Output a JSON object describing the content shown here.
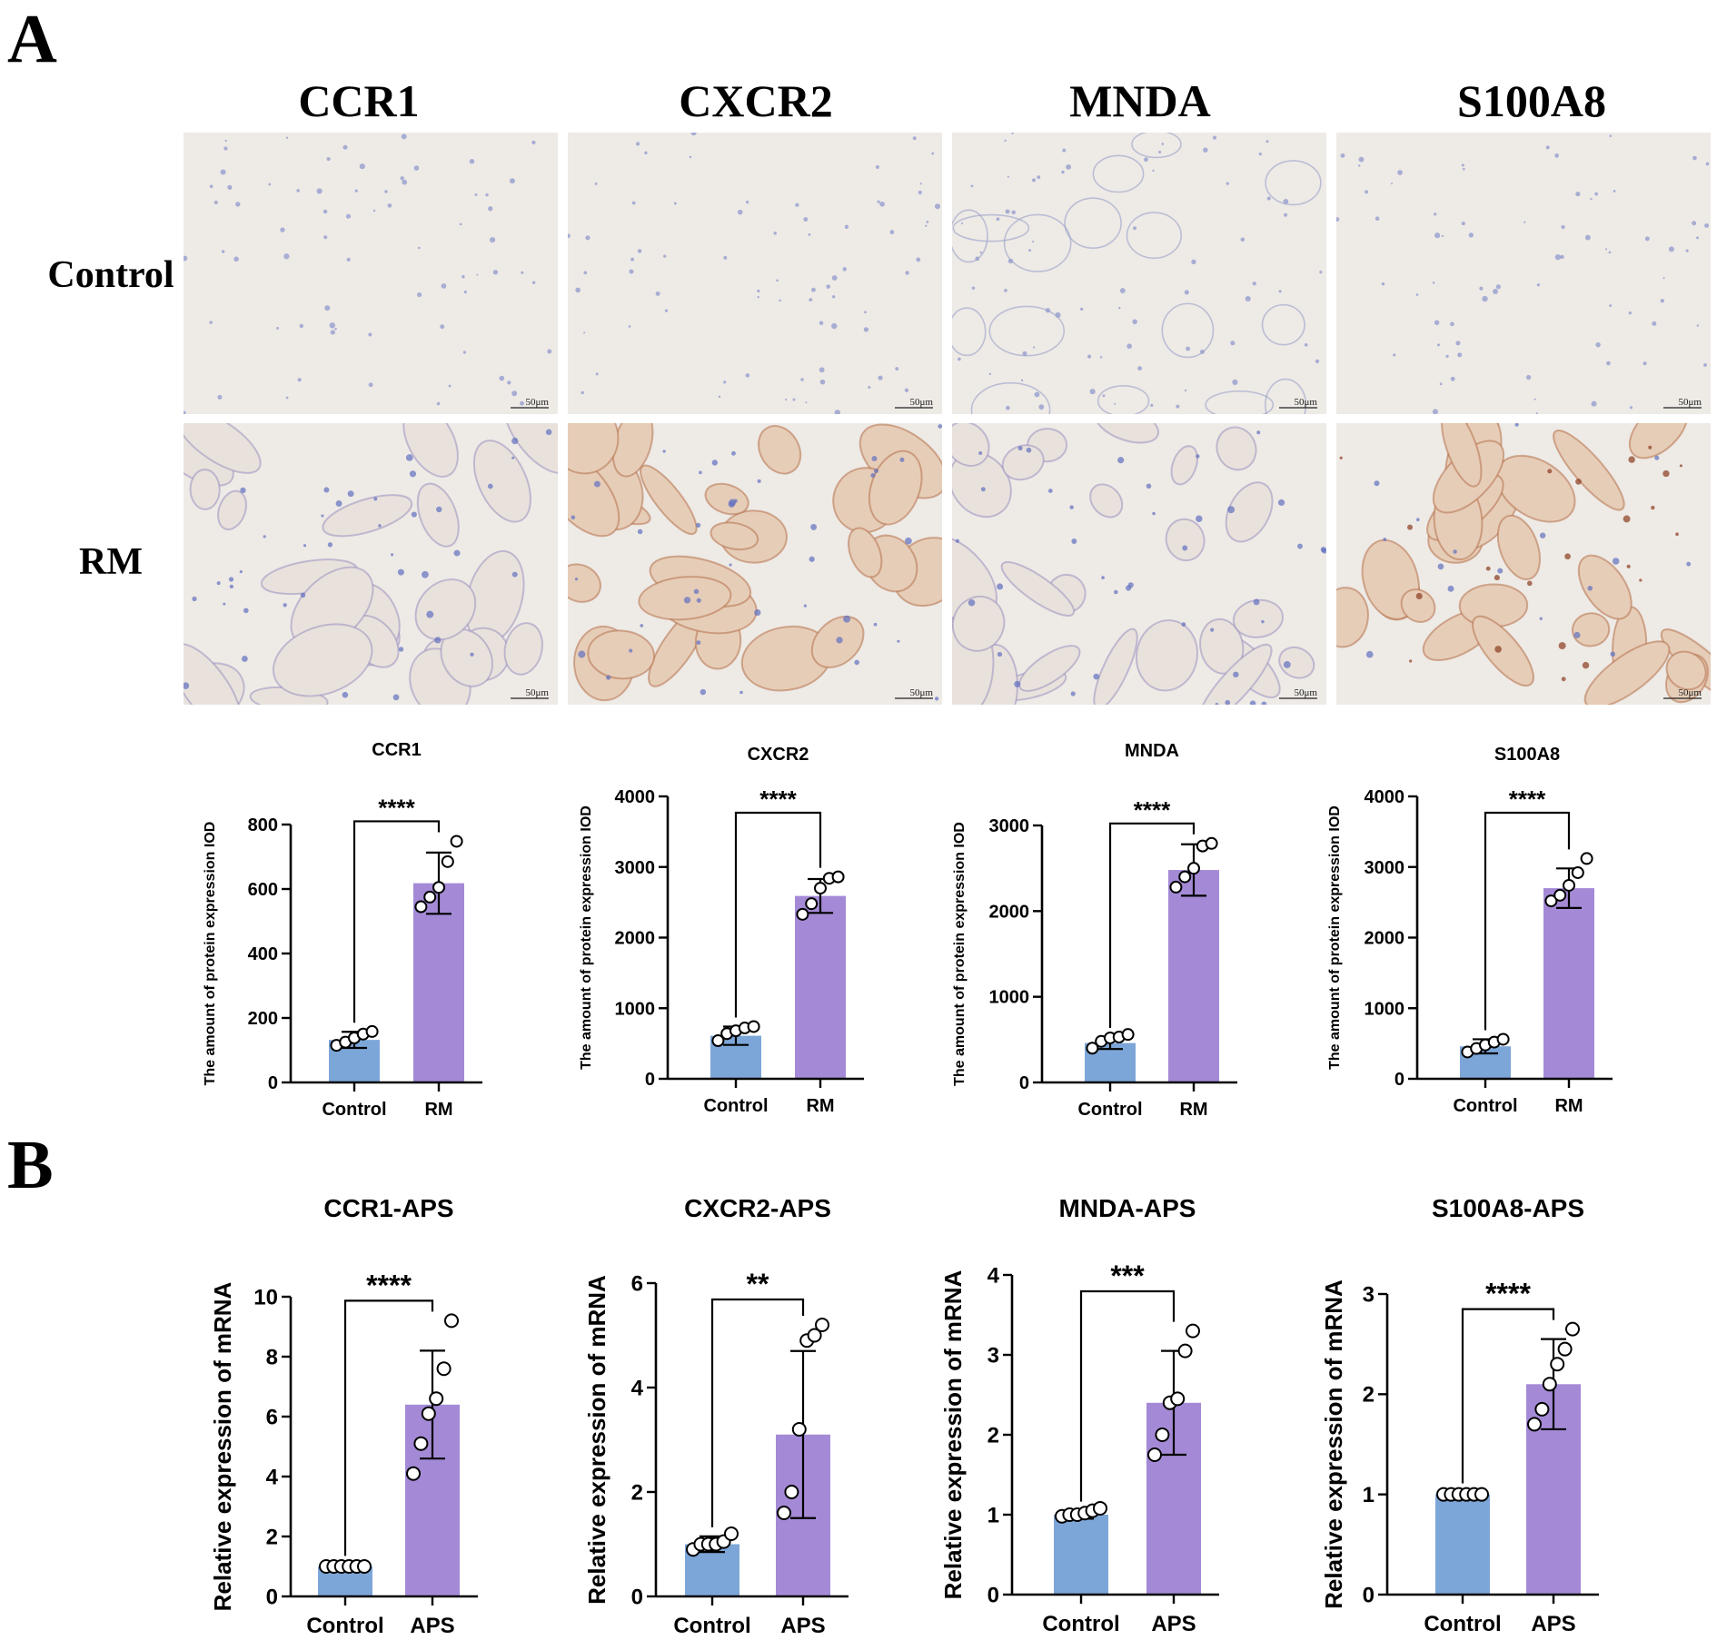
{
  "panel_a": {
    "letter": "A",
    "micrograph": {
      "columns": [
        "CCR1",
        "CXCR2",
        "MNDA",
        "S100A8"
      ],
      "rows": [
        "Control",
        "RM"
      ],
      "scale_bar": "50μm"
    }
  },
  "panel_b": {
    "letter": "B"
  },
  "colors": {
    "control_bar": "#7da6d8",
    "treatment_bar": "#a48ad6",
    "axis": "#000000",
    "tissue_bg": "#eeeae6",
    "stain_brown": "#b5714a",
    "stain_blue": "#5f6fbf"
  },
  "chart_data": [
    {
      "type": "bar",
      "title": "CCR1",
      "xlabel": "",
      "ylabel": "The amount of protein expression IOD",
      "categories": [
        "Control",
        "RM"
      ],
      "values": [
        132,
        618
      ],
      "error": [
        25,
        95
      ],
      "points": [
        [
          115,
          125,
          138,
          150,
          158
        ],
        [
          545,
          575,
          605,
          685,
          748
        ]
      ],
      "ylim": [
        0,
        800
      ],
      "yticks": [
        0,
        200,
        400,
        600,
        800
      ],
      "significance": "****"
    },
    {
      "type": "bar",
      "title": "CXCR2",
      "xlabel": "",
      "ylabel": "The amount of protein expression IOD",
      "categories": [
        "Control",
        "RM"
      ],
      "values": [
        610,
        2590
      ],
      "error": [
        130,
        240
      ],
      "points": [
        [
          540,
          640,
          680,
          720,
          740
        ],
        [
          2330,
          2480,
          2700,
          2840,
          2860
        ]
      ],
      "ylim": [
        0,
        4000
      ],
      "yticks": [
        0,
        1000,
        2000,
        3000,
        4000
      ],
      "significance": "****"
    },
    {
      "type": "bar",
      "title": "MNDA",
      "xlabel": "",
      "ylabel": "The amount of protein expression IOD",
      "categories": [
        "Control",
        "RM"
      ],
      "values": [
        460,
        2480
      ],
      "error": [
        70,
        300
      ],
      "points": [
        [
          400,
          480,
          520,
          530,
          560
        ],
        [
          2280,
          2400,
          2500,
          2760,
          2790
        ]
      ],
      "ylim": [
        0,
        3000
      ],
      "yticks": [
        0,
        1000,
        2000,
        3000
      ],
      "significance": "****"
    },
    {
      "type": "bar",
      "title": "S100A8",
      "xlabel": "",
      "ylabel": "The amount of protein expression IOD",
      "categories": [
        "Control",
        "RM"
      ],
      "values": [
        460,
        2700
      ],
      "error": [
        100,
        280
      ],
      "points": [
        [
          380,
          430,
          480,
          520,
          560
        ],
        [
          2520,
          2600,
          2740,
          2920,
          3120
        ]
      ],
      "ylim": [
        0,
        4000
      ],
      "yticks": [
        0,
        1000,
        2000,
        3000,
        4000
      ],
      "significance": "****"
    },
    {
      "type": "bar",
      "title": "CCR1-APS",
      "xlabel": "",
      "ylabel": "Relative expression of mRNA",
      "categories": [
        "Control",
        "APS"
      ],
      "values": [
        1.0,
        6.4
      ],
      "error": [
        0.05,
        1.8
      ],
      "points": [
        [
          1.0,
          1.0,
          1.0,
          1.0,
          1.0,
          1.0
        ],
        [
          4.1,
          5.1,
          6.1,
          6.6,
          7.6,
          9.2
        ]
      ],
      "ylim": [
        0,
        10
      ],
      "yticks": [
        0,
        2,
        4,
        6,
        8,
        10
      ],
      "significance": "****"
    },
    {
      "type": "bar",
      "title": "CXCR2-APS",
      "xlabel": "",
      "ylabel": "Relative expression of mRNA",
      "categories": [
        "Control",
        "APS"
      ],
      "values": [
        1.0,
        3.1
      ],
      "error": [
        0.15,
        1.6
      ],
      "points": [
        [
          0.9,
          1.0,
          1.0,
          1.0,
          1.05,
          1.2
        ],
        [
          1.6,
          2.0,
          3.2,
          4.9,
          5.0,
          5.2
        ]
      ],
      "ylim": [
        0,
        6
      ],
      "yticks": [
        0,
        2,
        4,
        6
      ],
      "significance": "**"
    },
    {
      "type": "bar",
      "title": "MNDA-APS",
      "xlabel": "",
      "ylabel": "Relative expression of mRNA",
      "categories": [
        "Control",
        "APS"
      ],
      "values": [
        1.0,
        2.4
      ],
      "error": [
        0.05,
        0.65
      ],
      "points": [
        [
          0.98,
          1.0,
          1.0,
          1.02,
          1.05,
          1.08
        ],
        [
          1.75,
          2.0,
          2.4,
          2.45,
          3.05,
          3.3
        ]
      ],
      "ylim": [
        0,
        4
      ],
      "yticks": [
        0,
        1,
        2,
        3,
        4
      ],
      "significance": "***"
    },
    {
      "type": "bar",
      "title": "S100A8-APS",
      "xlabel": "",
      "ylabel": "Relative expression of mRNA",
      "categories": [
        "Control",
        "APS"
      ],
      "values": [
        1.0,
        2.1
      ],
      "error": [
        0.02,
        0.45
      ],
      "points": [
        [
          1.0,
          1.0,
          1.0,
          1.0,
          1.0,
          1.0
        ],
        [
          1.7,
          1.85,
          2.1,
          2.3,
          2.45,
          2.65
        ]
      ],
      "ylim": [
        0,
        3
      ],
      "yticks": [
        0,
        1,
        2,
        3
      ],
      "significance": "****"
    }
  ]
}
